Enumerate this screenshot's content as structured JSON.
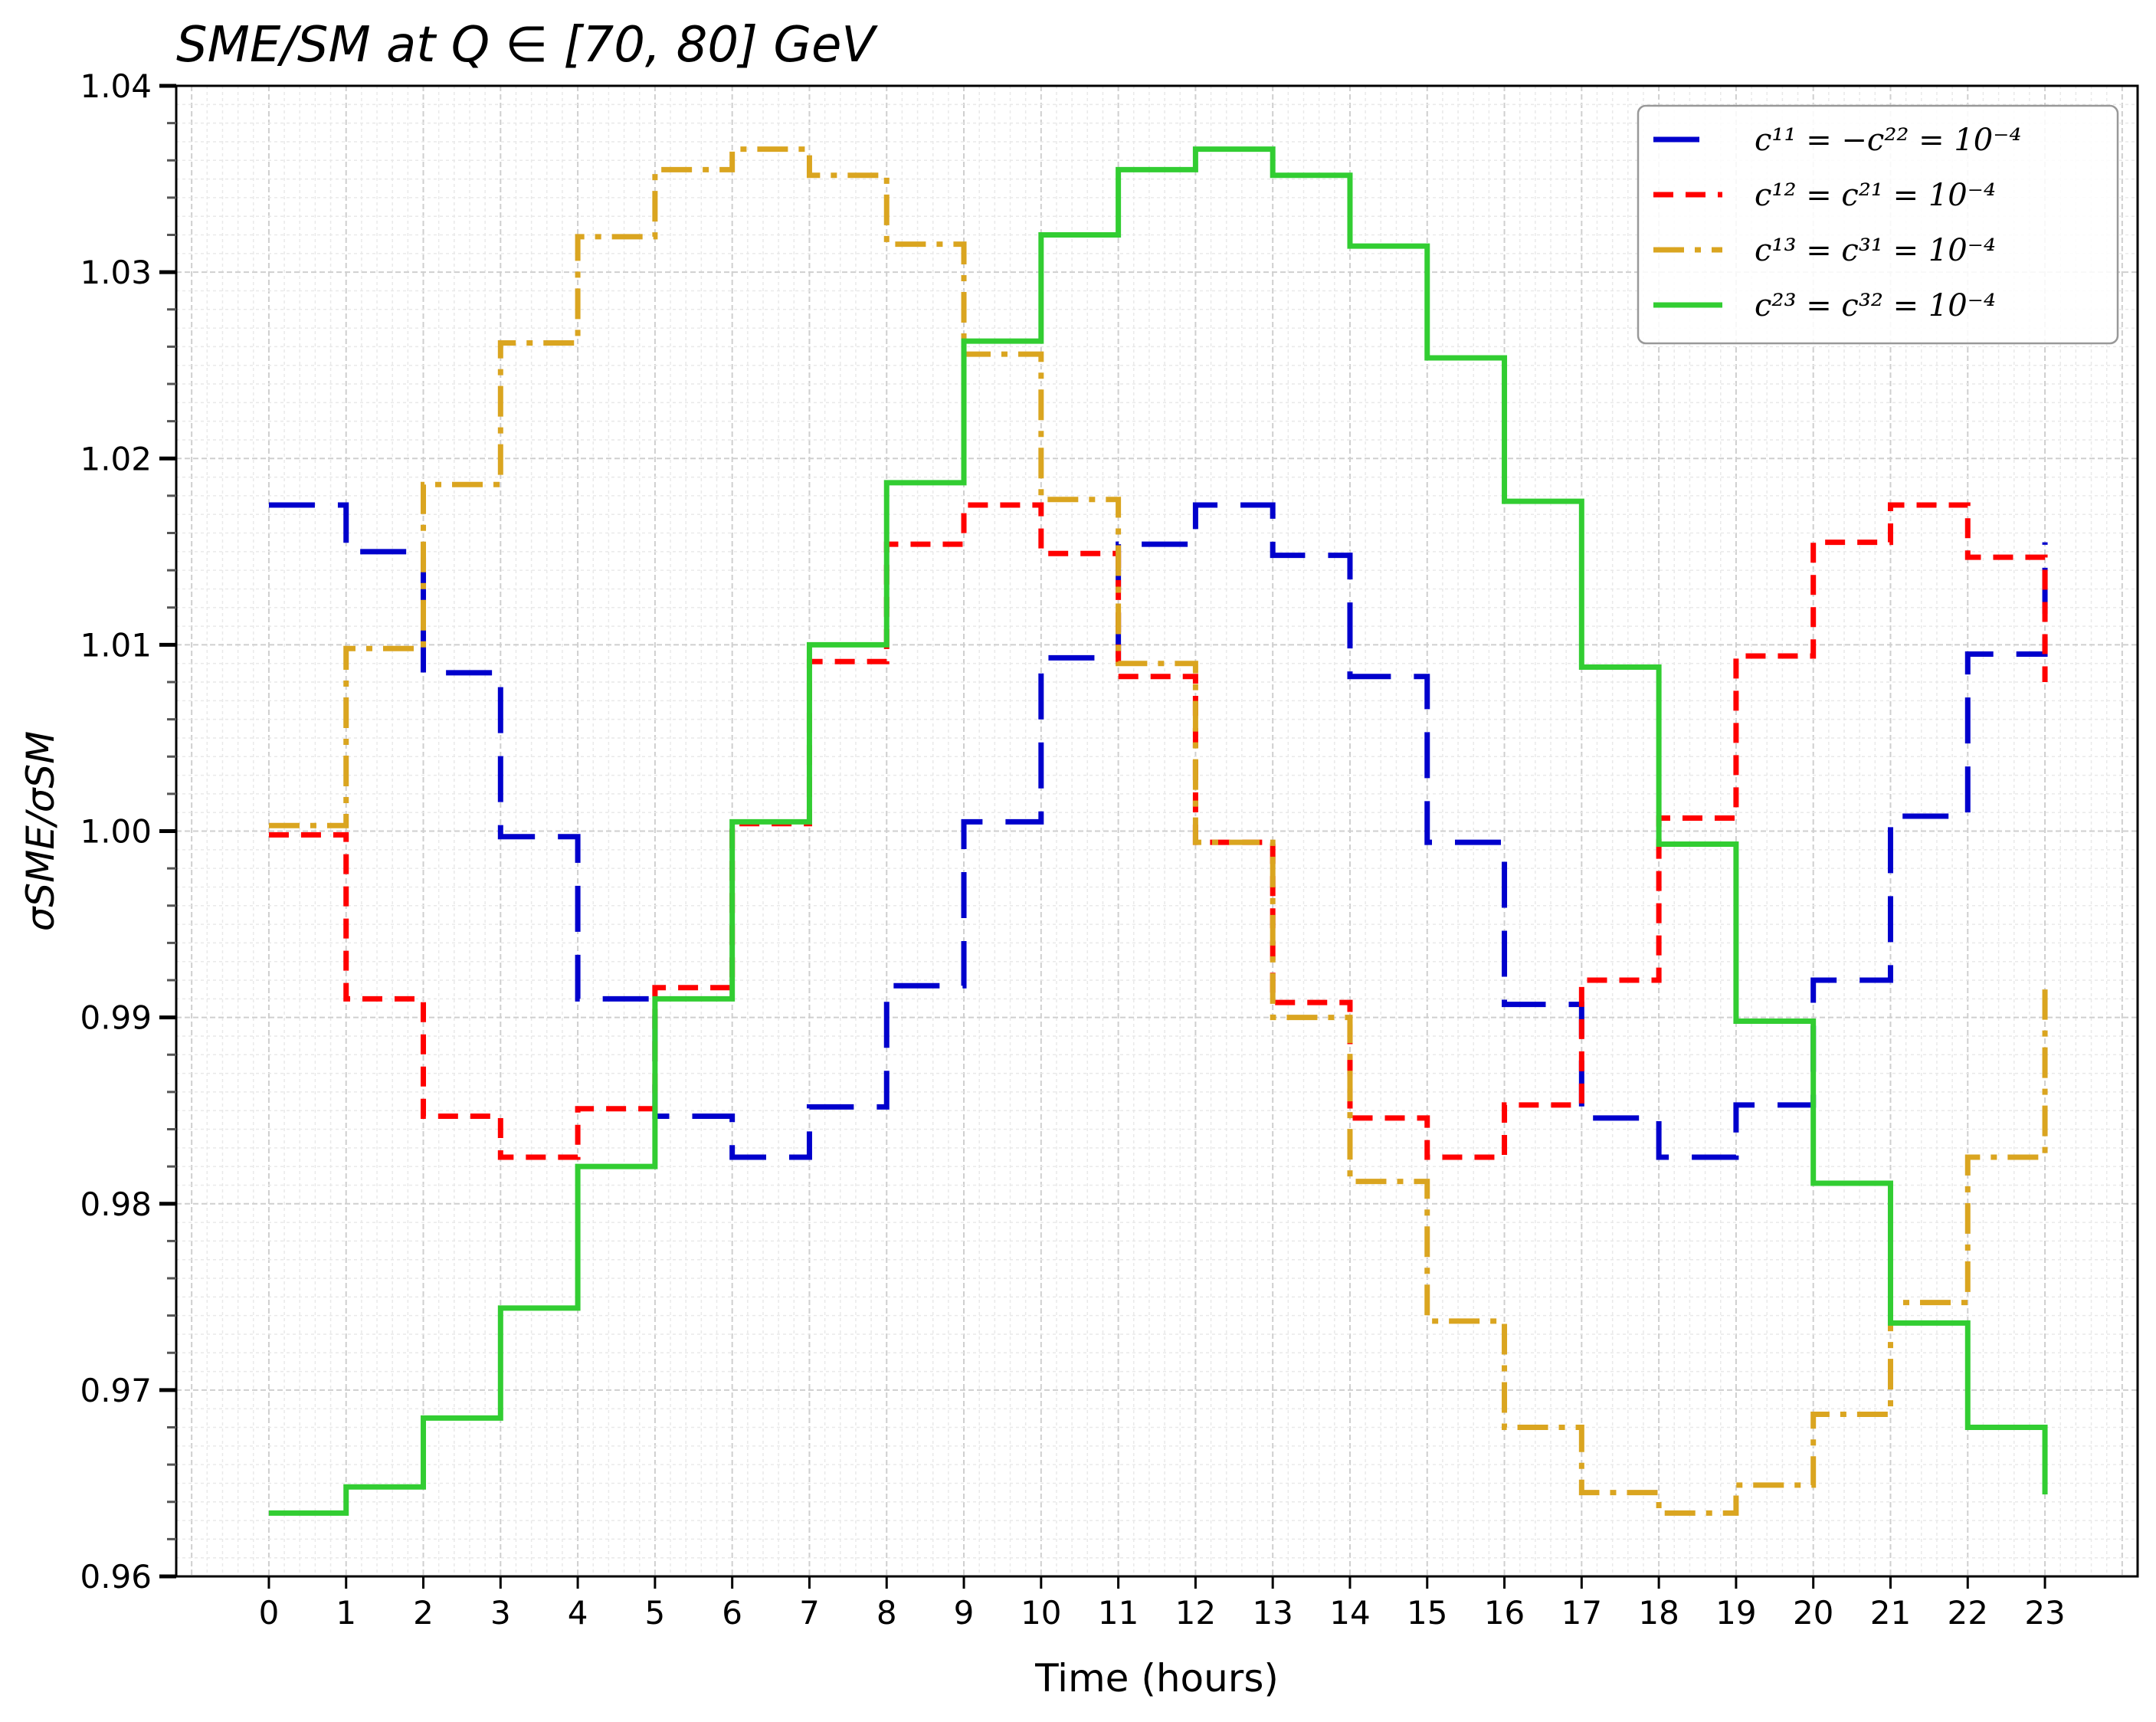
{
  "chart_data": {
    "type": "line",
    "step": "post",
    "title": "SME/SM at Q ∈ [70, 80] GeV",
    "xlabel": "Time (hours)",
    "ylabel": "σSME/σSM",
    "xlim": [
      -1.2,
      24.2
    ],
    "ylim": [
      0.96,
      1.04
    ],
    "xticks": [
      0,
      1,
      2,
      3,
      4,
      5,
      6,
      7,
      8,
      9,
      10,
      11,
      12,
      13,
      14,
      15,
      16,
      17,
      18,
      19,
      20,
      21,
      22,
      23
    ],
    "yticks": [
      0.96,
      0.97,
      0.98,
      0.99,
      1.0,
      1.01,
      1.02,
      1.03,
      1.04
    ],
    "ytick_labels": [
      "0.96",
      "0.97",
      "0.98",
      "0.99",
      "1.00",
      "1.01",
      "1.02",
      "1.03",
      "1.04"
    ],
    "grid": true,
    "legend_position": "top-right",
    "x": [
      0,
      1,
      2,
      3,
      4,
      5,
      6,
      7,
      8,
      9,
      10,
      11,
      12,
      13,
      14,
      15,
      16,
      17,
      18,
      19,
      20,
      21,
      22,
      23
    ],
    "series": [
      {
        "name": "c¹¹ = −c²² = 10⁻⁴",
        "color": "#0000cc",
        "dash": "long-dash",
        "values": [
          1.0175,
          1.015,
          1.0085,
          0.9997,
          0.991,
          0.9847,
          0.9825,
          0.9852,
          0.9917,
          1.0005,
          1.0093,
          1.0154,
          1.0175,
          1.0148,
          1.0083,
          0.9994,
          0.9907,
          0.9846,
          0.9825,
          0.9853,
          0.992,
          1.0008,
          1.0095,
          1.0155
        ]
      },
      {
        "name": "c¹² = c²¹ = 10⁻⁴",
        "color": "#ff0000",
        "dash": "dashed",
        "values": [
          0.9998,
          0.991,
          0.9847,
          0.9825,
          0.9851,
          0.9916,
          1.0004,
          1.0091,
          1.0154,
          1.0175,
          1.0149,
          1.0083,
          0.9994,
          0.9908,
          0.9846,
          0.9825,
          0.9853,
          0.992,
          1.0007,
          1.0094,
          1.0155,
          1.0175,
          1.0147,
          1.008
        ]
      },
      {
        "name": "c¹³ = c³¹ = 10⁻⁴",
        "color": "#daa520",
        "dash": "dash-dot",
        "values": [
          1.0003,
          1.0098,
          1.0186,
          1.0262,
          1.0319,
          1.0355,
          1.0366,
          1.0352,
          1.0315,
          1.0256,
          1.0178,
          1.009,
          0.9994,
          0.99,
          0.9812,
          0.9737,
          0.968,
          0.9645,
          0.9634,
          0.9649,
          0.9687,
          0.9747,
          0.9825,
          0.9915
        ]
      },
      {
        "name": "c²³ = c³² = 10⁻⁴",
        "color": "#32cd32",
        "dash": "solid",
        "values": [
          0.9634,
          0.9648,
          0.9685,
          0.9744,
          0.982,
          0.991,
          1.0005,
          1.01,
          1.0187,
          1.0263,
          1.032,
          1.0355,
          1.0366,
          1.0352,
          1.0314,
          1.0254,
          1.0177,
          1.0088,
          0.9993,
          0.9898,
          0.9811,
          0.9736,
          0.968,
          0.9644
        ]
      }
    ]
  }
}
